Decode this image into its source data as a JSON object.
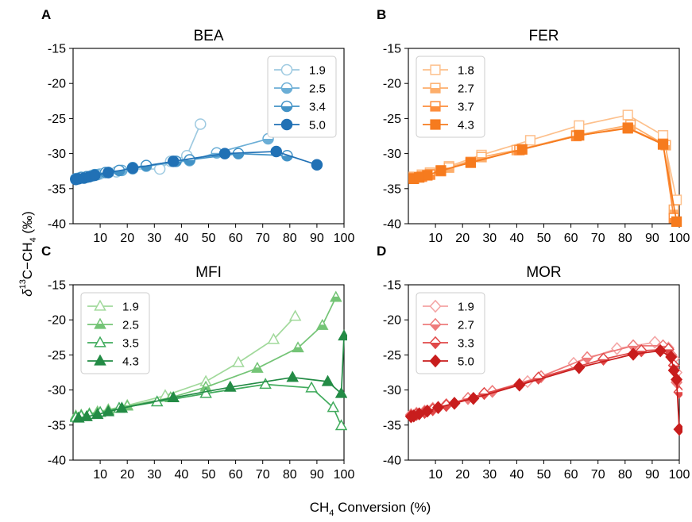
{
  "figure": {
    "ylabel_main": "δ",
    "ylabel_sup": "13",
    "ylabel_rest": "C−CH",
    "ylabel_sub": "4",
    "ylabel_unit": " (‰)",
    "xlabel_main": "CH",
    "xlabel_sub": "4",
    "xlabel_rest": " Conversion (%)"
  },
  "chart_data": [
    {
      "type": "line",
      "panel": "A",
      "title": "BEA",
      "color": "#2c7bb6",
      "marker": "circle",
      "xlim": [
        0,
        100
      ],
      "ylim": [
        -40,
        -15
      ],
      "xticks": [
        10,
        20,
        30,
        40,
        50,
        60,
        70,
        80,
        90,
        100
      ],
      "yticks": [
        -40,
        -35,
        -30,
        -25,
        -20,
        -15
      ],
      "legend_position": "top-right",
      "series": [
        {
          "name": "1.9",
          "color": "#9ecae1",
          "fill": "none",
          "x": [
            1,
            2,
            3,
            5,
            7,
            10,
            16,
            22,
            32,
            36,
            42,
            47
          ],
          "y": [
            -33.6,
            -33.5,
            -33.4,
            -33.3,
            -33.1,
            -32.9,
            -32.6,
            -32.2,
            -32.2,
            -31.1,
            -30.3,
            -25.8
          ]
        },
        {
          "name": "2.5",
          "color": "#6baed6",
          "fill": "half",
          "x": [
            1,
            3,
            5,
            7,
            9,
            13,
            18,
            27,
            43,
            53,
            72
          ],
          "y": [
            -33.6,
            -33.5,
            -33.4,
            -33.2,
            -33.0,
            -32.7,
            -32.4,
            -31.8,
            -31.0,
            -29.9,
            -27.9
          ]
        },
        {
          "name": "3.4",
          "color": "#4292c6",
          "fill": "half",
          "x": [
            1,
            3,
            5,
            8,
            12,
            17,
            22,
            27,
            38,
            43,
            61,
            79
          ],
          "y": [
            -33.6,
            -33.4,
            -33.3,
            -33.0,
            -32.7,
            -32.4,
            -32.0,
            -31.7,
            -31.1,
            -30.9,
            -30.0,
            -30.3
          ]
        },
        {
          "name": "5.0",
          "color": "#2171b5",
          "fill": "full",
          "x": [
            1,
            2,
            4,
            6,
            8,
            13,
            22,
            37,
            56,
            75,
            90
          ],
          "y": [
            -33.7,
            -33.6,
            -33.5,
            -33.3,
            -33.1,
            -32.7,
            -32.1,
            -31.1,
            -30.0,
            -29.7,
            -31.6
          ]
        }
      ]
    },
    {
      "type": "line",
      "panel": "B",
      "title": "FER",
      "color": "#fd8d3c",
      "marker": "square",
      "xlim": [
        0,
        100
      ],
      "ylim": [
        -40,
        -15
      ],
      "xticks": [
        10,
        20,
        30,
        40,
        50,
        60,
        70,
        80,
        90,
        100
      ],
      "yticks": [
        -40,
        -35,
        -30,
        -25,
        -20,
        -15
      ],
      "legend_position": "top-left",
      "series": [
        {
          "name": "1.8",
          "color": "#fdc08c",
          "fill": "none",
          "x": [
            2,
            5,
            8,
            15,
            27,
            45,
            63,
            81,
            94,
            99
          ],
          "y": [
            -33.3,
            -33.0,
            -32.7,
            -31.8,
            -30.2,
            -28.1,
            -26.0,
            -24.5,
            -27.4,
            -36.6
          ]
        },
        {
          "name": "2.7",
          "color": "#fdae6b",
          "fill": "half",
          "x": [
            2,
            5,
            8,
            15,
            27,
            40,
            62,
            82,
            95,
            98
          ],
          "y": [
            -33.4,
            -33.2,
            -32.9,
            -32.0,
            -30.5,
            -29.5,
            -27.4,
            -25.9,
            -28.8,
            -38.0
          ]
        },
        {
          "name": "3.7",
          "color": "#fd8d3c",
          "fill": "half",
          "x": [
            2,
            5,
            8,
            12,
            23,
            41,
            62,
            81,
            94,
            98
          ],
          "y": [
            -33.5,
            -33.3,
            -33.0,
            -32.5,
            -31.2,
            -29.5,
            -27.5,
            -26.3,
            -28.6,
            -39.2
          ]
        },
        {
          "name": "4.3",
          "color": "#f67b1e",
          "fill": "full",
          "x": [
            2,
            4,
            7,
            12,
            23,
            42,
            63,
            81,
            94,
            99
          ],
          "y": [
            -33.6,
            -33.4,
            -33.1,
            -32.4,
            -31.3,
            -29.4,
            -27.4,
            -26.4,
            -28.7,
            -39.7
          ]
        }
      ]
    },
    {
      "type": "line",
      "panel": "C",
      "title": "MFI",
      "color": "#31a354",
      "marker": "triangle",
      "xlim": [
        0,
        100
      ],
      "ylim": [
        -40,
        -15
      ],
      "xticks": [
        10,
        20,
        30,
        40,
        50,
        60,
        70,
        80,
        90,
        100
      ],
      "yticks": [
        -40,
        -35,
        -30,
        -25,
        -20,
        -15
      ],
      "legend_position": "top-left",
      "series": [
        {
          "name": "1.9",
          "color": "#a1d99b",
          "fill": "none",
          "x": [
            1,
            3,
            6,
            9,
            13,
            20,
            34,
            49,
            61,
            74,
            82
          ],
          "y": [
            -33.7,
            -33.6,
            -33.4,
            -33.1,
            -32.8,
            -32.2,
            -30.8,
            -28.8,
            -26.1,
            -22.8,
            -19.5
          ]
        },
        {
          "name": "2.5",
          "color": "#74c476",
          "fill": "half",
          "x": [
            1,
            3,
            6,
            9,
            13,
            20,
            36,
            49,
            68,
            83,
            92,
            97
          ],
          "y": [
            -33.7,
            -33.6,
            -33.4,
            -33.2,
            -32.9,
            -32.3,
            -31.1,
            -29.6,
            -26.9,
            -24.0,
            -20.8,
            -16.8
          ]
        },
        {
          "name": "3.5",
          "color": "#41ab5d",
          "fill": "none",
          "x": [
            1,
            3,
            6,
            10,
            17,
            31,
            49,
            71,
            88,
            96,
            99
          ],
          "y": [
            -33.9,
            -33.7,
            -33.5,
            -33.2,
            -32.6,
            -31.7,
            -30.5,
            -29.2,
            -29.7,
            -32.5,
            -35.1
          ]
        },
        {
          "name": "4.3",
          "color": "#238b45",
          "fill": "full",
          "x": [
            2,
            5,
            9,
            13,
            18,
            37,
            58,
            81,
            94,
            99,
            100
          ],
          "y": [
            -34.0,
            -33.8,
            -33.5,
            -33.1,
            -32.6,
            -31.1,
            -29.6,
            -28.2,
            -28.8,
            -30.5,
            -22.3
          ]
        }
      ]
    },
    {
      "type": "line",
      "panel": "D",
      "title": "MOR",
      "color": "#d62728",
      "marker": "diamond",
      "xlim": [
        0,
        100
      ],
      "ylim": [
        -40,
        -15
      ],
      "xticks": [
        10,
        20,
        30,
        40,
        50,
        60,
        70,
        80,
        90,
        100
      ],
      "yticks": [
        -40,
        -35,
        -30,
        -25,
        -20,
        -15
      ],
      "legend_position": "top-left",
      "series": [
        {
          "name": "1.9",
          "color": "#f4a3a3",
          "fill": "none",
          "x": [
            1,
            3,
            6,
            9,
            14,
            22,
            31,
            44,
            61,
            77,
            91,
            96,
            98,
            99
          ],
          "y": [
            -33.5,
            -33.3,
            -33.0,
            -32.6,
            -32.1,
            -31.2,
            -30.2,
            -28.8,
            -26.2,
            -24.1,
            -23.2,
            -24.0,
            -25.5,
            -27.5
          ]
        },
        {
          "name": "2.7",
          "color": "#ee7b7b",
          "fill": "half",
          "x": [
            1,
            3,
            6,
            9,
            14,
            22,
            31,
            49,
            66,
            83,
            94,
            97,
            99
          ],
          "y": [
            -33.6,
            -33.4,
            -33.1,
            -32.7,
            -32.1,
            -31.2,
            -30.2,
            -28.1,
            -25.4,
            -23.7,
            -23.7,
            -25.0,
            -28.9
          ]
        },
        {
          "name": "3.3",
          "color": "#e04848",
          "fill": "half",
          "x": [
            1,
            3,
            6,
            9,
            14,
            28,
            41,
            48,
            72,
            86,
            96,
            98,
            100
          ],
          "y": [
            -33.7,
            -33.5,
            -33.2,
            -32.8,
            -32.2,
            -30.5,
            -29.2,
            -28.3,
            -25.6,
            -24.4,
            -24.2,
            -26.5,
            -30.3
          ]
        },
        {
          "name": "5.0",
          "color": "#c81d1d",
          "fill": "full",
          "x": [
            1,
            2,
            4,
            7,
            11,
            17,
            24,
            41,
            63,
            83,
            93,
            97,
            98,
            99,
            100
          ],
          "y": [
            -33.8,
            -33.7,
            -33.4,
            -33.0,
            -32.5,
            -31.9,
            -31.2,
            -29.3,
            -26.8,
            -24.9,
            -24.4,
            -25.3,
            -27.2,
            -28.5,
            -35.6
          ]
        }
      ]
    }
  ]
}
